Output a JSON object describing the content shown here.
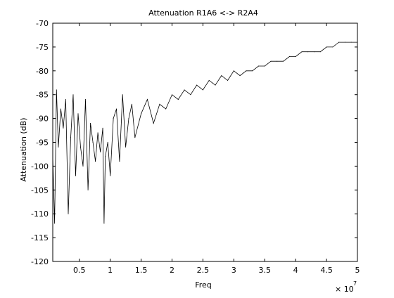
{
  "chart_data": {
    "type": "line",
    "title": "Attenuation R1A6 <-> R2A4",
    "xlabel": "Freq",
    "ylabel": "Attenuation (dB)",
    "x_exponent_label": "× 10",
    "x_exponent_power": "7",
    "xlim": [
      0.07,
      5.0
    ],
    "ylim": [
      -120,
      -70
    ],
    "x_unit_multiplier": 10000000,
    "x_ticks": [
      "0.5",
      "1",
      "1.5",
      "2",
      "2.5",
      "3",
      "3.5",
      "4",
      "4.5",
      "5"
    ],
    "x_tick_values": [
      0.5,
      1,
      1.5,
      2,
      2.5,
      3,
      3.5,
      4,
      4.5,
      5
    ],
    "y_ticks": [
      "-70",
      "-75",
      "-80",
      "-85",
      "-90",
      "-95",
      "-100",
      "-105",
      "-110",
      "-115",
      "-120"
    ],
    "y_tick_values": [
      -70,
      -75,
      -80,
      -85,
      -90,
      -95,
      -100,
      -105,
      -110,
      -115,
      -120
    ],
    "grid": false,
    "line_color": "#000000",
    "series": [
      {
        "x": [
          0.07,
          0.1,
          0.13,
          0.16,
          0.2,
          0.24,
          0.28,
          0.32,
          0.36,
          0.4,
          0.44,
          0.48,
          0.52,
          0.56,
          0.6,
          0.64,
          0.68,
          0.72,
          0.76,
          0.8,
          0.84,
          0.88,
          0.9,
          0.92,
          0.96,
          1.0,
          1.05,
          1.1,
          1.15,
          1.2,
          1.25,
          1.3,
          1.35,
          1.4,
          1.5,
          1.6,
          1.7,
          1.8,
          1.9,
          2.0,
          2.1,
          2.2,
          2.3,
          2.4,
          2.5,
          2.6,
          2.7,
          2.8,
          2.9,
          3.0,
          3.1,
          3.2,
          3.3,
          3.4,
          3.5,
          3.6,
          3.7,
          3.8,
          3.9,
          4.0,
          4.1,
          4.2,
          4.3,
          4.4,
          4.5,
          4.6,
          4.7,
          4.8,
          4.9,
          5.0
        ],
        "values": [
          -98,
          -112,
          -84,
          -96,
          -88,
          -92,
          -86,
          -110,
          -94,
          -85,
          -102,
          -89,
          -96,
          -100,
          -86,
          -105,
          -91,
          -95,
          -99,
          -93,
          -97,
          -92,
          -112,
          -98,
          -95,
          -102,
          -90,
          -88,
          -99,
          -85,
          -96,
          -90,
          -87,
          -94,
          -89,
          -86,
          -91,
          -87,
          -88,
          -85,
          -86,
          -84,
          -85,
          -83,
          -84,
          -82,
          -83,
          -81,
          -82,
          -80,
          -81,
          -80,
          -80,
          -79,
          -79,
          -78,
          -78,
          -78,
          -77,
          -77,
          -76,
          -76,
          -76,
          -76,
          -75,
          -75,
          -74,
          -74,
          -74,
          -74
        ]
      }
    ]
  }
}
